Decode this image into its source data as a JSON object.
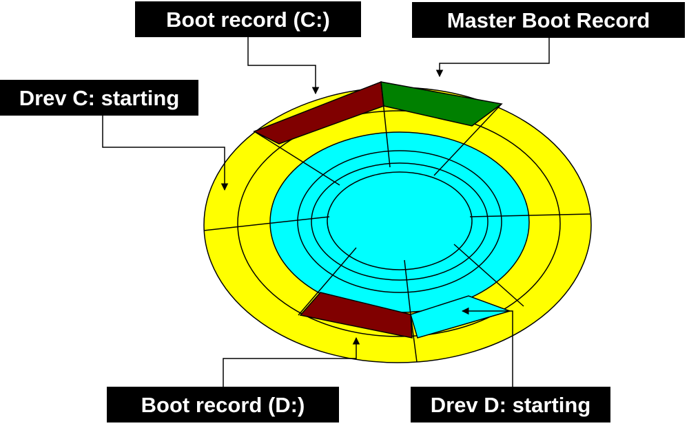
{
  "labels": {
    "boot_record_c": "Boot record (C:)",
    "master_boot_record": "Master Boot Record",
    "drive_c_start": "Drev C: starting",
    "boot_record_d": "Boot record (D:)",
    "drive_d_start": "Drev D: starting"
  },
  "colors": {
    "outer_track": "#ffff00",
    "inner_tracks": "#00ffff",
    "boot_record": "#800000",
    "master_boot_record": "#008000",
    "label_background": "#000000",
    "label_text": "#ffffff",
    "lines": "#000000"
  }
}
